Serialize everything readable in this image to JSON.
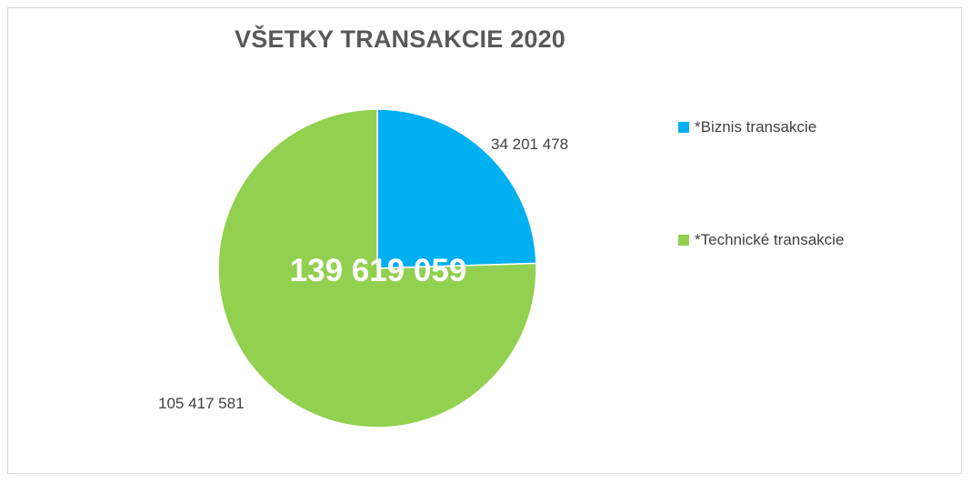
{
  "chart_data": {
    "type": "pie",
    "title": "VŠETKY TRANSAKCIE 2020",
    "total_label": "139 619 059",
    "slices": [
      {
        "name": "*Biznis transakcie",
        "value": 34201478,
        "label": "34 201 478",
        "color": "#00b0f0"
      },
      {
        "name": "*Technické transakcie",
        "value": 105417581,
        "label": "105 417 581",
        "color": "#92d050"
      }
    ],
    "legend_position": "right"
  }
}
